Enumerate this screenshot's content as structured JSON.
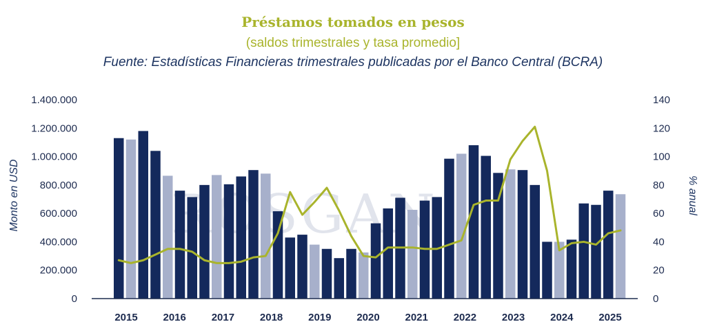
{
  "header": {
    "title": "Préstamos tomados en pesos",
    "subtitle": "(saldos trimestrales y tasa promedio]",
    "source": "Fuente: Estadísticas Financieras trimestrales publicadas por el Banco Central (BCRA)"
  },
  "watermark": "ROSGAN",
  "colors": {
    "dark_bar": "#14295c",
    "light_bar": "#a7b0cb",
    "line": "#a9b42c",
    "text": "#1d3461"
  },
  "chart_data": {
    "type": "bar",
    "ylabel": "Monto en USD",
    "y2label": "% anual",
    "ylim": [
      0,
      1400000
    ],
    "y2lim": [
      0,
      140
    ],
    "yticks": [
      "0",
      "200.000",
      "400.000",
      "600.000",
      "800.000",
      "1.000.000",
      "1.200.000",
      "1.400.000"
    ],
    "y2ticks": [
      "0",
      "20",
      "40",
      "60",
      "80",
      "100",
      "120",
      "140"
    ],
    "xticks": [
      "2015",
      "2016",
      "2017",
      "2018",
      "2019",
      "2020",
      "2021",
      "2022",
      "2023",
      "2024",
      "2025"
    ],
    "grid": false,
    "bars": [
      {
        "value": 1130000,
        "shade": "dark"
      },
      {
        "value": 1120000,
        "shade": "light"
      },
      {
        "value": 1180000,
        "shade": "dark"
      },
      {
        "value": 1040000,
        "shade": "dark"
      },
      {
        "value": 865000,
        "shade": "light"
      },
      {
        "value": 760000,
        "shade": "dark"
      },
      {
        "value": 715000,
        "shade": "dark"
      },
      {
        "value": 800000,
        "shade": "dark"
      },
      {
        "value": 870000,
        "shade": "light"
      },
      {
        "value": 805000,
        "shade": "dark"
      },
      {
        "value": 860000,
        "shade": "dark"
      },
      {
        "value": 905000,
        "shade": "dark"
      },
      {
        "value": 880000,
        "shade": "light"
      },
      {
        "value": 615000,
        "shade": "dark"
      },
      {
        "value": 430000,
        "shade": "dark"
      },
      {
        "value": 450000,
        "shade": "dark"
      },
      {
        "value": 380000,
        "shade": "light"
      },
      {
        "value": 350000,
        "shade": "dark"
      },
      {
        "value": 285000,
        "shade": "dark"
      },
      {
        "value": 350000,
        "shade": "dark"
      },
      {
        "value": 325000,
        "shade": "light"
      },
      {
        "value": 530000,
        "shade": "dark"
      },
      {
        "value": 635000,
        "shade": "dark"
      },
      {
        "value": 710000,
        "shade": "dark"
      },
      {
        "value": 625000,
        "shade": "light"
      },
      {
        "value": 690000,
        "shade": "dark"
      },
      {
        "value": 715000,
        "shade": "dark"
      },
      {
        "value": 985000,
        "shade": "dark"
      },
      {
        "value": 1020000,
        "shade": "light"
      },
      {
        "value": 1080000,
        "shade": "dark"
      },
      {
        "value": 1005000,
        "shade": "dark"
      },
      {
        "value": 885000,
        "shade": "dark"
      },
      {
        "value": 910000,
        "shade": "light"
      },
      {
        "value": 905000,
        "shade": "dark"
      },
      {
        "value": 800000,
        "shade": "dark"
      },
      {
        "value": 400000,
        "shade": "dark"
      },
      {
        "value": 400000,
        "shade": "light"
      },
      {
        "value": 415000,
        "shade": "dark"
      },
      {
        "value": 670000,
        "shade": "dark"
      },
      {
        "value": 660000,
        "shade": "dark"
      },
      {
        "value": 760000,
        "shade": "dark"
      },
      {
        "value": 735000,
        "shade": "light"
      }
    ],
    "rate": [
      27,
      25,
      27,
      31,
      35,
      35,
      33,
      27,
      25,
      25,
      26,
      29,
      30,
      46,
      75,
      59,
      68,
      78,
      62,
      44,
      30,
      29,
      36,
      36,
      36,
      35,
      35,
      38,
      41,
      66,
      69,
      69,
      98,
      111,
      121,
      90,
      34,
      39,
      40,
      38,
      46,
      48
    ]
  }
}
